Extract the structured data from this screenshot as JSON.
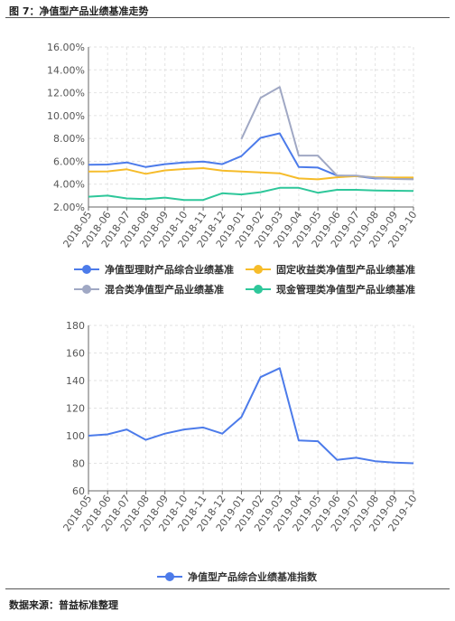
{
  "figure_title": "图 7：净值型产品业绩基准走势",
  "source_note": "数据来源：普益标准整理",
  "chart_data": [
    {
      "type": "line",
      "categories": [
        "2018-05",
        "2018-06",
        "2018-07",
        "2018-08",
        "2018-09",
        "2018-10",
        "2018-11",
        "2018-12",
        "2019-01",
        "2019-02",
        "2019-03",
        "2019-04",
        "2019-05",
        "2019-06",
        "2019-07",
        "2019-08",
        "2019-09",
        "2019-10"
      ],
      "ylim": [
        2,
        16
      ],
      "yticks": [
        "2.00%",
        "4.00%",
        "6.00%",
        "8.00%",
        "10.00%",
        "12.00%",
        "14.00%",
        "16.00%"
      ],
      "ytick_values": [
        2,
        4,
        6,
        8,
        10,
        12,
        14,
        16
      ],
      "grid": true,
      "legend_position": "bottom",
      "series": [
        {
          "name": "净值型理财产品综合业绩基准",
          "color": "#4c7bea",
          "values": [
            5.7,
            5.72,
            5.9,
            5.5,
            5.75,
            5.9,
            5.98,
            5.75,
            6.45,
            8.05,
            8.45,
            5.5,
            5.45,
            4.75,
            4.7,
            4.5,
            4.5,
            4.5
          ]
        },
        {
          "name": "固定收益类净值型产品业绩基准",
          "color": "#f6bc2a",
          "values": [
            5.1,
            5.12,
            5.3,
            4.9,
            5.2,
            5.32,
            5.4,
            5.18,
            5.1,
            5.02,
            4.95,
            4.5,
            4.42,
            4.6,
            4.7,
            4.6,
            4.58,
            4.58
          ]
        },
        {
          "name": "混合类净值型产品业绩基准",
          "color": "#a0a8c4",
          "values": [
            null,
            null,
            null,
            null,
            null,
            null,
            null,
            null,
            7.95,
            11.55,
            12.5,
            6.5,
            6.5,
            4.75,
            4.75,
            4.55,
            4.45,
            4.42
          ]
        },
        {
          "name": "现金管理类净值型产品业绩基准",
          "color": "#2ec79a",
          "values": [
            2.9,
            3.0,
            2.75,
            2.7,
            2.82,
            2.62,
            2.62,
            3.2,
            3.1,
            3.3,
            3.68,
            3.68,
            3.25,
            3.5,
            3.5,
            3.45,
            3.42,
            3.4
          ]
        }
      ]
    },
    {
      "type": "line",
      "categories": [
        "2018-05",
        "2018-06",
        "2018-07",
        "2018-08",
        "2018-09",
        "2018-10",
        "2018-11",
        "2018-12",
        "2019-01",
        "2019-02",
        "2019-03",
        "2019-04",
        "2019-05",
        "2019-06",
        "2019-07",
        "2019-08",
        "2019-09",
        "2019-10"
      ],
      "ylim": [
        60,
        180
      ],
      "yticks": [
        "60",
        "80",
        "100",
        "120",
        "140",
        "160",
        "180"
      ],
      "ytick_values": [
        60,
        80,
        100,
        120,
        140,
        160,
        180
      ],
      "grid": true,
      "legend_position": "bottom",
      "series": [
        {
          "name": "净值型产品综合业绩基准指数",
          "color": "#4c7bea",
          "values": [
            100,
            101,
            104.5,
            97,
            101.5,
            104.5,
            106,
            101.5,
            113.5,
            142.5,
            149,
            96.5,
            96,
            82.5,
            84,
            81.5,
            80.5,
            80
          ]
        }
      ]
    }
  ]
}
